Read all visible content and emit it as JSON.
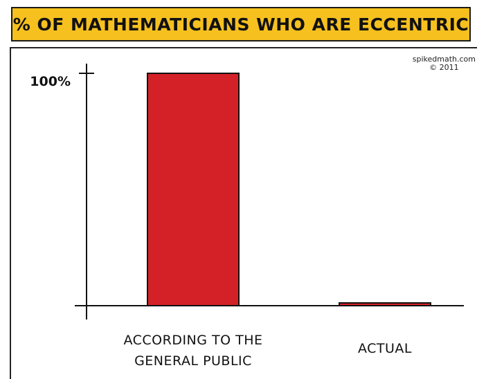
{
  "title": "% OF MATHEMATICIANS WHO ARE ECCENTRIC",
  "credit": {
    "site": "spikedmath.com",
    "year": "© 2011"
  },
  "colors": {
    "banner": "#f6c01e",
    "bar": "#d42127",
    "ink": "#111111"
  },
  "chart_data": {
    "type": "bar",
    "title": "% OF MATHEMATICIANS WHO ARE ECCENTRIC",
    "categories": [
      [
        "ACCORDING TO THE",
        "GENERAL PUBLIC"
      ],
      [
        "ACTUAL"
      ]
    ],
    "values": [
      100,
      1
    ],
    "ytick_label": "100%",
    "ylim": [
      0,
      100
    ],
    "grid": false,
    "legend": "none"
  }
}
